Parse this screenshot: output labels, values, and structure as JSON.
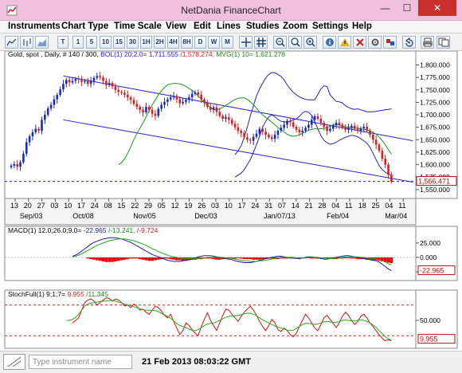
{
  "window": {
    "title": "NetDania FinanceChart",
    "minimize_glyph": "—",
    "maximize_glyph": "☐",
    "close_glyph": "✕"
  },
  "menu": [
    "Instruments",
    "Chart Type",
    "Time Scale",
    "View",
    "Edit",
    "Lines",
    "Studies",
    "Zoom",
    "Settings",
    "Help"
  ],
  "toolbar": {
    "period_buttons": [
      "T",
      "1",
      "5",
      "10",
      "15",
      "30",
      "1H",
      "2H",
      "4H",
      "8H",
      "D",
      "W",
      "M"
    ],
    "icons": [
      "line-chart-icon",
      "bar-chart-icon",
      "candlestick-icon",
      "crosshair-icon",
      "grid-icon",
      "zoom-out-icon",
      "zoom-fit-icon",
      "zoom-in-icon",
      "delete-icon",
      "settings-icon",
      "print-icon",
      "copy-icon",
      "undo-icon"
    ]
  },
  "chart_data": [
    {
      "type": "candlestick",
      "legend": {
        "instrument": "Gold, spot , Daily, # 140 / 300,",
        "bol_label": "BOL(1) 20;2.0=",
        "bol_upper": "1,711.555",
        "bol_lower": "/1,578.274,",
        "mvg_label": "MVG(1) 10=",
        "mvg_value": "1,621.278"
      },
      "y_ticks": [
        "1,800.000",
        "1,775.000",
        "1,750.000",
        "1,725.000",
        "1,700.000",
        "1,675.000",
        "1,650.000",
        "1,625.000",
        "1,600.000",
        "1,575.000",
        "1,550.000"
      ],
      "y_tick_values": [
        1800,
        1775,
        1750,
        1725,
        1700,
        1675,
        1650,
        1625,
        1600,
        1575,
        1550
      ],
      "ylim": [
        1545,
        1812
      ],
      "last_price": "1,566.471",
      "last_value": 1566.471,
      "x_day_labels": [
        "13",
        "20",
        "27",
        "03",
        "10",
        "17",
        "24",
        "08",
        "15",
        "22",
        "29",
        "05",
        "12",
        "19",
        "26",
        "03",
        "10",
        "17",
        "24",
        "31",
        "07",
        "14",
        "21",
        "28",
        "04",
        "11",
        "18",
        "25",
        "04",
        "11"
      ],
      "x_month_labels": [
        {
          "label": "Sep/03",
          "at": 6
        },
        {
          "label": "Oct/08",
          "at": 23
        },
        {
          "label": "Nov/05",
          "at": 43
        },
        {
          "label": "Dec/03",
          "at": 63
        },
        {
          "label": "Jan/07/13",
          "at": 87
        },
        {
          "label": "Feb/04",
          "at": 106
        },
        {
          "label": "Mar/04",
          "at": 125
        }
      ],
      "close": [
        1598,
        1601,
        1596,
        1605,
        1622,
        1645,
        1657,
        1665,
        1672,
        1668,
        1690,
        1700,
        1713,
        1720,
        1731,
        1740,
        1751,
        1762,
        1770,
        1765,
        1768,
        1772,
        1770,
        1766,
        1768,
        1762,
        1768,
        1774,
        1778,
        1775,
        1768,
        1760,
        1764,
        1757,
        1750,
        1746,
        1744,
        1740,
        1735,
        1730,
        1722,
        1716,
        1710,
        1705,
        1716,
        1710,
        1702,
        1698,
        1712,
        1720,
        1726,
        1731,
        1735,
        1738,
        1731,
        1723,
        1726,
        1730,
        1735,
        1742,
        1745,
        1740,
        1731,
        1724,
        1716,
        1710,
        1715,
        1706,
        1698,
        1692,
        1695,
        1690,
        1682,
        1675,
        1668,
        1663,
        1655,
        1650,
        1648,
        1656,
        1662,
        1672,
        1666,
        1660,
        1655,
        1652,
        1660,
        1668,
        1674,
        1680,
        1688,
        1685,
        1676,
        1670,
        1665,
        1668,
        1674,
        1680,
        1690,
        1697,
        1692,
        1684,
        1676,
        1668,
        1672,
        1679,
        1684,
        1680,
        1675,
        1670,
        1674,
        1678,
        1672,
        1668,
        1673,
        1676,
        1668,
        1660,
        1650,
        1640,
        1628,
        1612,
        1600,
        1580,
        1566
      ],
      "bollinger": {
        "upper": [
          1620,
          1628,
          1638,
          1655,
          1675,
          1698,
          1718,
          1738,
          1752,
          1763,
          1774,
          1781,
          1785,
          1784,
          1781,
          1777,
          1770,
          1760,
          1752,
          1745,
          1740,
          1736,
          1733,
          1731,
          1730,
          1730,
          1730,
          1741,
          1752,
          1758,
          1757,
          1740,
          1733,
          1727,
          1726,
          1724,
          1718,
          1715,
          1712,
          1711,
          1712,
          1710,
          1708,
          1706,
          1706,
          1706,
          1707,
          1708,
          1709,
          1710,
          1711,
          1712
        ],
        "lower": [
          1575,
          1579,
          1583,
          1590,
          1600,
          1610,
          1625,
          1640,
          1657,
          1675,
          1687,
          1696,
          1700,
          1696,
          1691,
          1687,
          1686,
          1685,
          1688,
          1690,
          1692,
          1697,
          1704,
          1707,
          1705,
          1699,
          1686,
          1672,
          1658,
          1649,
          1644,
          1641,
          1642,
          1645,
          1649,
          1652,
          1655,
          1657,
          1659,
          1658,
          1656,
          1652,
          1648,
          1643,
          1635,
          1623,
          1610,
          1598,
          1590,
          1585,
          1581,
          1578
        ]
      },
      "moving_average": [
        1600,
        1604,
        1612,
        1623,
        1636,
        1650,
        1662,
        1673,
        1684,
        1696,
        1708,
        1720,
        1730,
        1740,
        1748,
        1755,
        1760,
        1762,
        1763,
        1763,
        1762,
        1760,
        1757,
        1753,
        1749,
        1744,
        1738,
        1731,
        1725,
        1719,
        1714,
        1711,
        1710,
        1712,
        1715,
        1719,
        1723,
        1727,
        1731,
        1733,
        1734,
        1734,
        1731,
        1726,
        1720,
        1713,
        1706,
        1700,
        1695,
        1690,
        1685,
        1680,
        1675,
        1670,
        1665,
        1661,
        1658,
        1657,
        1658,
        1660,
        1663,
        1666,
        1669,
        1671,
        1672,
        1672,
        1672,
        1673,
        1675,
        1677,
        1679,
        1681,
        1680,
        1678,
        1676,
        1675,
        1674,
        1673,
        1673,
        1672,
        1671,
        1670,
        1668,
        1665,
        1661,
        1655,
        1648,
        1640,
        1630,
        1621
      ],
      "trend_lines": [
        {
          "from": [
            17,
            1778
          ],
          "to": [
            131,
            1648
          ]
        },
        {
          "from": [
            17,
            1690
          ],
          "to": [
            131,
            1565
          ]
        }
      ]
    },
    {
      "type": "line",
      "legend": {
        "label": "MACD(1) 12.0;26.0;9.0=",
        "value_a": "-22.965",
        "value_b": "/-13.241,",
        "value_c": "/-9.724"
      },
      "y_ticks": [
        "25.000",
        "0.000",
        "-25.000"
      ],
      "y_tick_values": [
        25,
        0,
        -25
      ],
      "ylim": [
        -36,
        40
      ],
      "last_value_label": "-22.965",
      "last_value": -22.965,
      "macd": [
        2,
        4,
        7,
        11,
        15,
        19,
        23,
        26,
        28,
        30,
        32,
        33,
        34,
        34,
        34,
        33,
        32,
        30,
        28,
        26,
        23,
        20,
        17,
        14,
        11,
        8,
        5,
        3,
        1,
        -1,
        -3,
        -5,
        -6,
        -7,
        -7,
        -7,
        -6,
        -5,
        -4,
        -3,
        -1,
        1,
        2,
        3,
        3,
        3,
        2,
        1,
        0,
        -1,
        -2,
        -3,
        -4,
        -6,
        -7,
        -8,
        -9,
        -9,
        -9,
        -8,
        -7,
        -5,
        -4,
        -2,
        -1,
        0,
        1,
        2,
        2,
        1,
        0,
        -1,
        -1,
        -2,
        -2,
        -1,
        0,
        1,
        1,
        0,
        -1,
        -2,
        -3,
        -3,
        -2,
        -1,
        0,
        1,
        2,
        3,
        3,
        2,
        1,
        0,
        -1,
        -2,
        -3,
        -4,
        -5,
        -6,
        -8,
        -12,
        -16,
        -20,
        -23
      ],
      "signal": [
        1,
        2,
        4,
        6,
        9,
        12,
        15,
        18,
        21,
        23,
        25,
        27,
        29,
        30,
        31,
        32,
        32,
        32,
        31,
        30,
        29,
        27,
        25,
        23,
        21,
        18,
        15,
        13,
        10,
        8,
        6,
        4,
        2,
        1,
        0,
        -1,
        -2,
        -2,
        -2,
        -2,
        -2,
        -2,
        -1,
        -1,
        0,
        0,
        0,
        0,
        0,
        0,
        -1,
        -1,
        -2,
        -3,
        -4,
        -5,
        -6,
        -6,
        -7,
        -7,
        -7,
        -6,
        -6,
        -5,
        -4,
        -3,
        -2,
        -1,
        0,
        0,
        0,
        0,
        0,
        -1,
        -1,
        -1,
        -1,
        0,
        0,
        0,
        0,
        -1,
        -1,
        -2,
        -2,
        -2,
        -1,
        -1,
        0,
        1,
        1,
        1,
        1,
        1,
        0,
        0,
        -1,
        -2,
        -2,
        -3,
        -4,
        -6,
        -8,
        -11,
        -13
      ],
      "histogram": [
        -2,
        -3,
        -4,
        -5,
        -6,
        -7,
        -8,
        -8,
        -8,
        -7,
        -6,
        -5,
        -4,
        -3,
        -2,
        -2,
        -2,
        -3,
        -4,
        -5,
        -6,
        -6,
        -5,
        -4,
        -3,
        -2,
        -2,
        -3,
        -4,
        -5,
        -5,
        -6,
        -6,
        -5,
        -4,
        -4,
        -3,
        -3,
        -2,
        -2,
        -2,
        -3,
        -4,
        -4,
        -3,
        -3,
        -2,
        -2,
        -2,
        -1,
        -2,
        -3,
        -3,
        -3,
        -4,
        -4,
        -4,
        -3,
        -3,
        -2,
        -2,
        -3,
        -3,
        -2,
        -2,
        -2,
        -1,
        -2,
        -2,
        -3,
        -2,
        -1,
        -1,
        -2,
        -2,
        -2,
        -1,
        -1,
        -2,
        -2,
        -3,
        -3,
        -2,
        -2,
        -1,
        -1,
        -2,
        -2,
        -3,
        -3,
        -3,
        -4,
        -4,
        -5,
        -5,
        -6,
        -7,
        -8,
        -9,
        -10
      ]
    },
    {
      "type": "line",
      "legend": {
        "label": "StochFull(1) 9;1;7=",
        "value_a": "9.955",
        "value_b": "/11.345"
      },
      "y_ticks": [
        "50.000"
      ],
      "y_tick_values": [
        50
      ],
      "ylim": [
        0,
        100
      ],
      "reference_levels": [
        80,
        20
      ],
      "last_value_label": "9.955",
      "last_value": 9.955,
      "k": [
        45,
        50,
        55,
        70,
        85,
        90,
        92,
        88,
        80,
        85,
        90,
        94,
        93,
        88,
        92,
        90,
        85,
        78,
        80,
        75,
        82,
        78,
        70,
        72,
        66,
        62,
        70,
        78,
        75,
        68,
        60,
        55,
        62,
        48,
        35,
        22,
        30,
        45,
        40,
        32,
        25,
        20,
        38,
        52,
        65,
        50,
        40,
        30,
        45,
        60,
        72,
        70,
        62,
        55,
        48,
        58,
        66,
        72,
        78,
        70,
        60,
        48,
        38,
        30,
        40,
        52,
        45,
        32,
        28,
        35,
        30,
        22,
        18,
        25,
        38,
        50,
        62,
        55,
        45,
        35,
        30,
        42,
        55,
        60,
        52,
        44,
        36,
        45,
        58,
        66,
        60,
        50,
        42,
        48,
        58,
        62,
        55,
        45,
        38,
        30,
        22,
        15,
        10,
        12,
        10
      ],
      "d": [
        50,
        50,
        52,
        56,
        62,
        70,
        78,
        82,
        84,
        85,
        86,
        87,
        88,
        88,
        89,
        89,
        88,
        86,
        84,
        82,
        80,
        79,
        77,
        75,
        73,
        71,
        70,
        70,
        70,
        69,
        67,
        64,
        61,
        58,
        54,
        49,
        44,
        40,
        38,
        36,
        33,
        30,
        30,
        32,
        36,
        40,
        43,
        44,
        45,
        47,
        50,
        53,
        56,
        58,
        59,
        59,
        60,
        61,
        63,
        64,
        64,
        62,
        59,
        55,
        51,
        48,
        45,
        42,
        39,
        37,
        35,
        33,
        31,
        30,
        31,
        34,
        38,
        42,
        44,
        44,
        43,
        42,
        43,
        45,
        47,
        48,
        47,
        46,
        46,
        48,
        50,
        51,
        50,
        49,
        49,
        50,
        51,
        50,
        48,
        45,
        41,
        36,
        30,
        24,
        18,
        14,
        11
      ]
    }
  ],
  "status": {
    "instrument_placeholder": "Type instrument name",
    "datetime": "21 Feb 2013 08:03:22 GMT"
  },
  "colors": {
    "titlebar": "#f0c0dc",
    "candle_up": "#1a2bb8",
    "candle_down": "#d42020",
    "bollinger": "#2222cc",
    "moving_average": "#d42020",
    "trend": "#2222cc",
    "macd": "#1a1aa0",
    "signal": "#22aa22",
    "histogram": "#e01010",
    "stoch_k": "#e01010",
    "stoch_d": "#22aa22",
    "last_price": "#c01010"
  }
}
